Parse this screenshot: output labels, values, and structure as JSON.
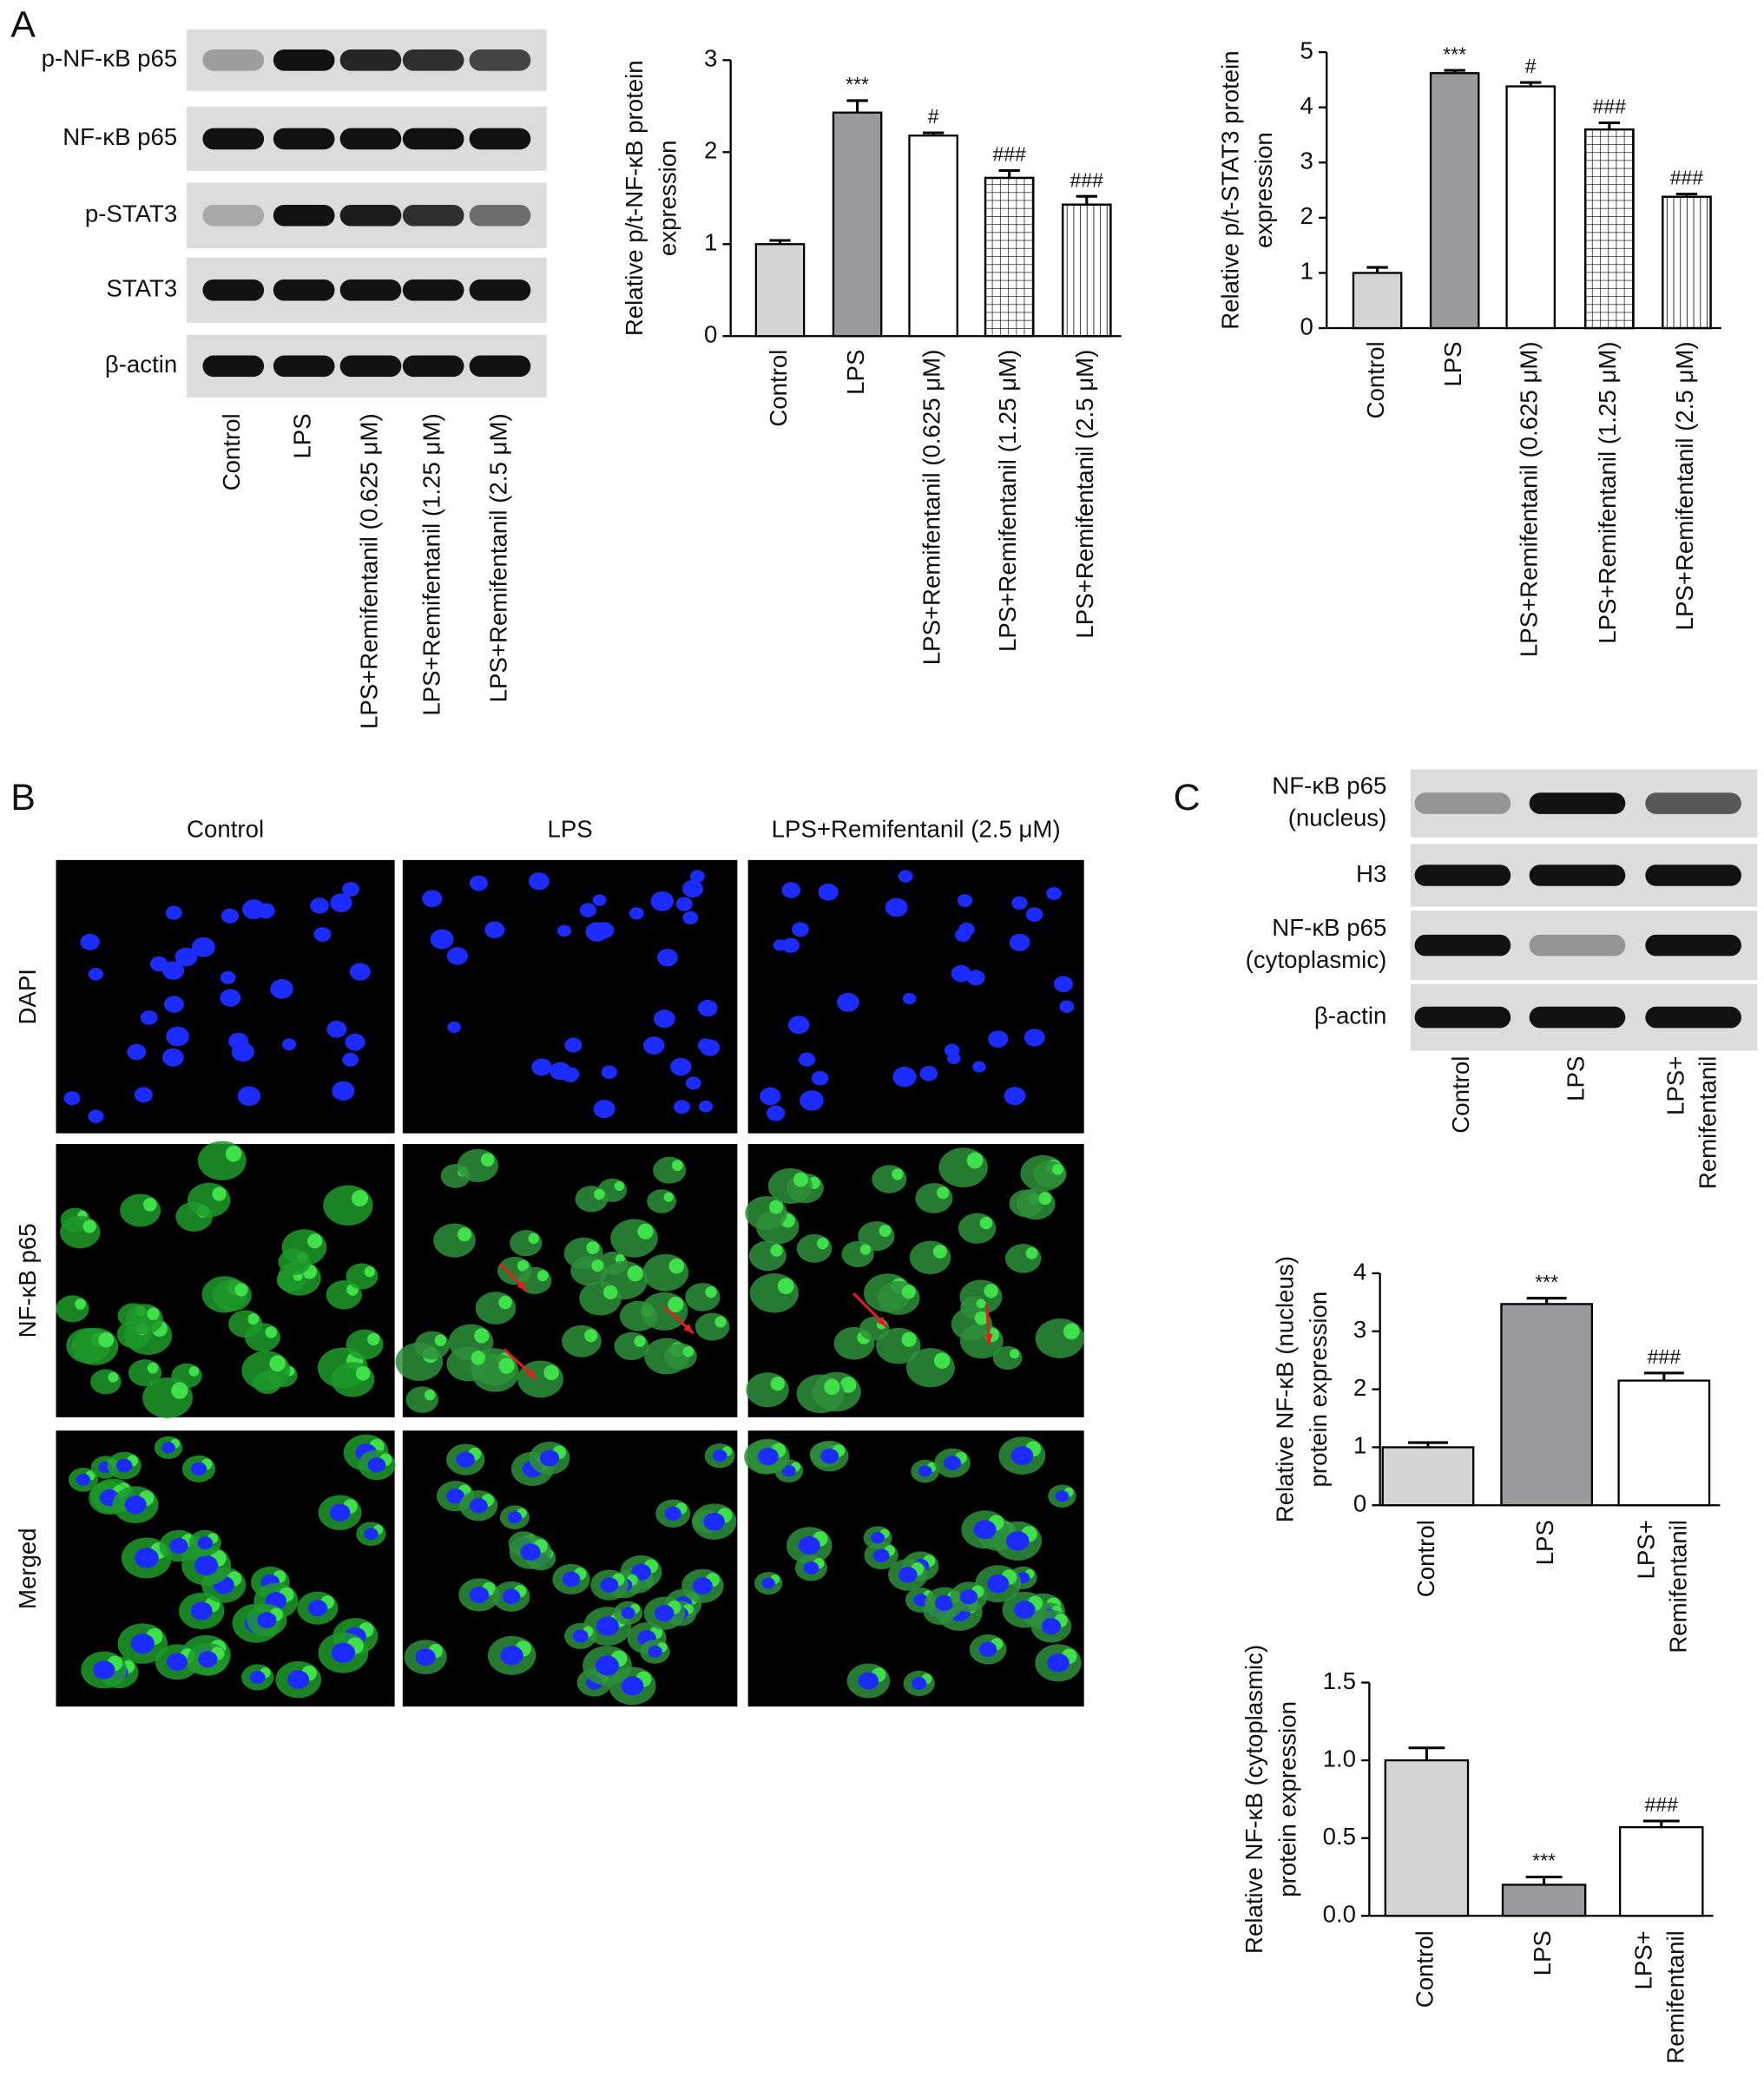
{
  "panel_labels": [
    "A",
    "B",
    "C"
  ],
  "blot_a": {
    "rows": [
      "p-NF-κB p65",
      "NF-κB p65",
      "p-STAT3",
      "STAT3",
      "β-actin"
    ],
    "lanes": [
      "Control",
      "LPS",
      "LPS+Remifentanil (0.625 μM)",
      "LPS+Remifentanil (1.25 μM)",
      "LPS+Remifentanil (2.5 μM)"
    ]
  },
  "panel_b": {
    "columns": [
      "Control",
      "LPS",
      "LPS+Remifentanil (2.5 μM)"
    ],
    "rows": [
      "DAPI",
      "NF-κB p65",
      "Merged"
    ]
  },
  "blot_c": {
    "rows": [
      [
        "NF-κB p65",
        "(nucleus)"
      ],
      [
        "H3"
      ],
      [
        "NF-κB p65",
        "(cytoplasmic)"
      ],
      [
        "β-actin"
      ]
    ],
    "lanes": [
      [
        "Control"
      ],
      [
        "LPS"
      ],
      [
        "LPS+",
        "Remifentanil"
      ]
    ]
  },
  "chart_data": [
    {
      "type": "bar",
      "ylabel": [
        "Relative  p/t-NF-κB protein",
        "expression"
      ],
      "categories": [
        [
          "Control"
        ],
        [
          "LPS"
        ],
        [
          "LPS+Remifentanil (0.625 μM)"
        ],
        [
          "LPS+Remifentanil (1.25 μM)"
        ],
        [
          "LPS+Remifentanil (2.5 μM)"
        ]
      ],
      "values": [
        1.0,
        2.43,
        2.18,
        1.72,
        1.43
      ],
      "errors": [
        0.04,
        0.13,
        0.03,
        0.08,
        0.09
      ],
      "annotations": [
        null,
        "***",
        "#",
        "###",
        "###"
      ],
      "colors": [
        "#d4d4d4",
        "#9a9a9c",
        "#ffffff",
        "#ffffff",
        "#ffffff"
      ],
      "hatches": [
        null,
        null,
        null,
        "grid",
        "vertical"
      ],
      "ylim": [
        0,
        3
      ],
      "yticks": [
        0,
        1,
        2,
        3
      ]
    },
    {
      "type": "bar",
      "ylabel": [
        "Relative p/t-STAT3 protein",
        "expression"
      ],
      "categories": [
        [
          "Control"
        ],
        [
          "LPS"
        ],
        [
          "LPS+Remifentanil (0.625 μM)"
        ],
        [
          "LPS+Remifentanil (1.25 μM)"
        ],
        [
          "LPS+Remifentanil (2.5 μM)"
        ]
      ],
      "values": [
        1.0,
        4.62,
        4.38,
        3.6,
        2.38
      ],
      "errors": [
        0.1,
        0.05,
        0.07,
        0.12,
        0.05
      ],
      "annotations": [
        null,
        "***",
        "#",
        "###",
        "###"
      ],
      "colors": [
        "#d4d4d4",
        "#9a9a9c",
        "#ffffff",
        "#ffffff",
        "#ffffff"
      ],
      "hatches": [
        null,
        null,
        null,
        "grid",
        "vertical"
      ],
      "ylim": [
        0,
        5
      ],
      "yticks": [
        0,
        1,
        2,
        3,
        4,
        5
      ]
    },
    {
      "type": "bar",
      "ylabel": [
        "Relative NF-κB (nucleus)",
        "protein expression"
      ],
      "categories": [
        [
          "Control"
        ],
        [
          "LPS"
        ],
        [
          "LPS+",
          "Remifentanil"
        ]
      ],
      "values": [
        1.0,
        3.47,
        2.15
      ],
      "errors": [
        0.08,
        0.1,
        0.13
      ],
      "annotations": [
        null,
        "***",
        "###"
      ],
      "colors": [
        "#d4d4d4",
        "#9a9a9c",
        "#ffffff"
      ],
      "hatches": [
        null,
        null,
        null
      ],
      "ylim": [
        0,
        4
      ],
      "yticks": [
        0,
        1,
        2,
        3,
        4
      ]
    },
    {
      "type": "bar",
      "ylabel": [
        "Relative NF-κB (cytoplasmic)",
        "protein expression"
      ],
      "categories": [
        [
          "Control"
        ],
        [
          "LPS"
        ],
        [
          "LPS+",
          "Remifentanil"
        ]
      ],
      "values": [
        1.0,
        0.2,
        0.57
      ],
      "errors": [
        0.08,
        0.05,
        0.04
      ],
      "annotations": [
        null,
        "***",
        "###"
      ],
      "colors": [
        "#d4d4d4",
        "#9a9a9c",
        "#ffffff"
      ],
      "hatches": [
        null,
        null,
        null
      ],
      "ylim": [
        0,
        1.5
      ],
      "yticks": [
        {
          "value": 0,
          "label": "0.0"
        },
        0.5,
        {
          "value": 1,
          "label": "1.0"
        },
        {
          "value": 1.5,
          "label": "1.5"
        }
      ]
    }
  ]
}
